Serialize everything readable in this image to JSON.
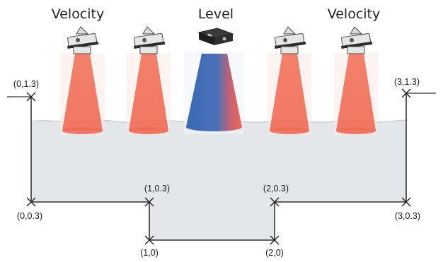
{
  "headings": {
    "left": "Velocity",
    "center": "Level",
    "right": "Velocity"
  },
  "colors": {
    "velocity_beam": "#f0705a",
    "level_beam_left": "#3f6fb8",
    "level_beam_right": "#ec6b56",
    "water": "#e3e7ea",
    "outline": "#333333"
  },
  "sensors": [
    {
      "type": "velocity",
      "icon": "velocity-sensor-icon"
    },
    {
      "type": "velocity",
      "icon": "velocity-sensor-icon"
    },
    {
      "type": "level",
      "icon": "level-sensor-icon"
    },
    {
      "type": "velocity",
      "icon": "velocity-sensor-icon"
    },
    {
      "type": "velocity",
      "icon": "velocity-sensor-icon"
    }
  ],
  "points": [
    {
      "label": "(0,1.3)"
    },
    {
      "label": "(3,1.3)"
    },
    {
      "label": "(0,0.3)"
    },
    {
      "label": "(1,0.3)"
    },
    {
      "label": "(2,0.3)"
    },
    {
      "label": "(3,0.3)"
    },
    {
      "label": "(1,0)"
    },
    {
      "label": "(2,0)"
    }
  ]
}
